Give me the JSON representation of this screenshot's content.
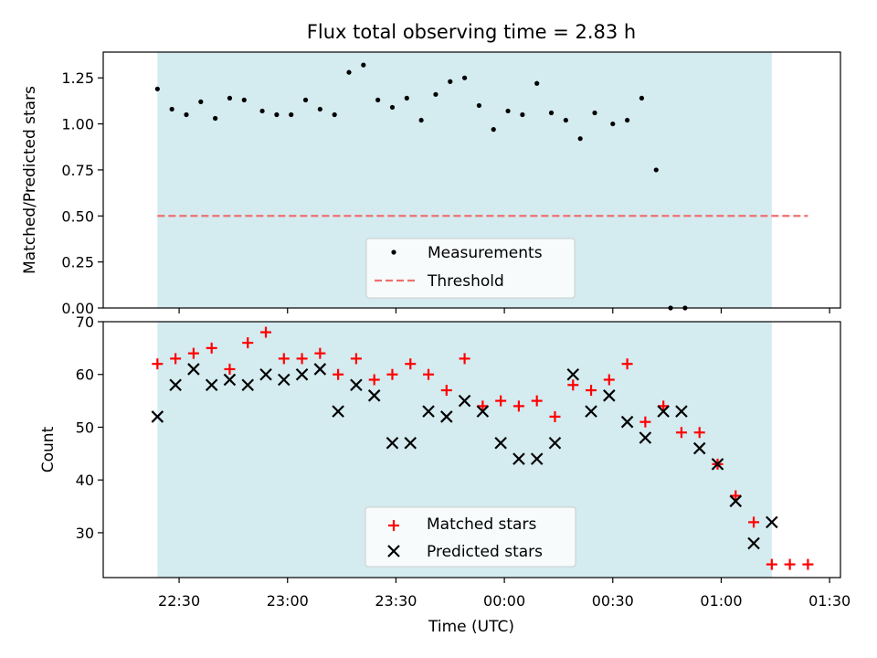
{
  "chart_data": [
    {
      "type": "scatter",
      "title": "Flux total observing time = 2.83 h",
      "xlabel": "",
      "ylabel": "Matched/Predicted stars",
      "ylim": [
        0,
        1.39
      ],
      "yticks": [
        0.0,
        0.25,
        0.5,
        0.75,
        1.0,
        1.25
      ],
      "ytick_labels": [
        "0.00",
        "0.25",
        "0.50",
        "0.75",
        "1.00",
        "1.25"
      ],
      "xlim": [
        "22:09",
        "01:33"
      ],
      "shaded_region": {
        "from": "22:24",
        "to": "01:14",
        "color": "#d4ebf0"
      },
      "threshold": {
        "name": "Threshold",
        "value": 0.5,
        "from": "22:24",
        "to": "01:24",
        "color": "#f07070"
      },
      "series": [
        {
          "name": "Measurements",
          "color": "#000000",
          "points": [
            [
              "22:24",
              1.19
            ],
            [
              "22:28",
              1.08
            ],
            [
              "22:32",
              1.05
            ],
            [
              "22:36",
              1.12
            ],
            [
              "22:40",
              1.03
            ],
            [
              "22:44",
              1.14
            ],
            [
              "22:48",
              1.13
            ],
            [
              "22:53",
              1.07
            ],
            [
              "22:57",
              1.05
            ],
            [
              "23:01",
              1.05
            ],
            [
              "23:05",
              1.13
            ],
            [
              "23:09",
              1.08
            ],
            [
              "23:13",
              1.05
            ],
            [
              "23:17",
              1.28
            ],
            [
              "23:21",
              1.32
            ],
            [
              "23:25",
              1.13
            ],
            [
              "23:29",
              1.09
            ],
            [
              "23:33",
              1.14
            ],
            [
              "23:37",
              1.02
            ],
            [
              "23:41",
              1.16
            ],
            [
              "23:45",
              1.23
            ],
            [
              "23:49",
              1.25
            ],
            [
              "23:53",
              1.1
            ],
            [
              "23:57",
              0.97
            ],
            [
              "00:01",
              1.07
            ],
            [
              "00:05",
              1.05
            ],
            [
              "00:09",
              1.22
            ],
            [
              "00:13",
              1.06
            ],
            [
              "00:17",
              1.02
            ],
            [
              "00:21",
              0.92
            ],
            [
              "00:25",
              1.06
            ],
            [
              "00:30",
              1.0
            ],
            [
              "00:34",
              1.02
            ],
            [
              "00:38",
              1.14
            ],
            [
              "00:42",
              0.75
            ],
            [
              "00:46",
              0.0
            ],
            [
              "00:50",
              0.0
            ]
          ]
        }
      ],
      "legend": {
        "placement": "lower-center",
        "entries": [
          "Measurements",
          "Threshold"
        ]
      }
    },
    {
      "type": "scatter",
      "title": "",
      "xlabel": "Time (UTC)",
      "ylabel": "Count",
      "ylim": [
        21.5,
        70
      ],
      "yticks": [
        30,
        40,
        50,
        60,
        70
      ],
      "ytick_labels": [
        "30",
        "40",
        "50",
        "60",
        "70"
      ],
      "xlim": [
        "22:09",
        "01:33"
      ],
      "xticks": [
        "22:30",
        "23:00",
        "23:30",
        "00:00",
        "00:30",
        "01:00",
        "01:30"
      ],
      "shaded_region": {
        "from": "22:24",
        "to": "01:14",
        "color": "#d4ebf0"
      },
      "series": [
        {
          "name": "Matched stars",
          "marker": "plus",
          "color": "#ff0000",
          "points": [
            [
              "22:24",
              62
            ],
            [
              "22:29",
              63
            ],
            [
              "22:34",
              64
            ],
            [
              "22:39",
              65
            ],
            [
              "22:44",
              61
            ],
            [
              "22:49",
              66
            ],
            [
              "22:54",
              68
            ],
            [
              "22:59",
              63
            ],
            [
              "23:04",
              63
            ],
            [
              "23:09",
              64
            ],
            [
              "23:14",
              60
            ],
            [
              "23:19",
              63
            ],
            [
              "23:24",
              59
            ],
            [
              "23:29",
              60
            ],
            [
              "23:34",
              62
            ],
            [
              "23:39",
              60
            ],
            [
              "23:44",
              57
            ],
            [
              "23:49",
              63
            ],
            [
              "23:54",
              54
            ],
            [
              "23:59",
              55
            ],
            [
              "00:04",
              54
            ],
            [
              "00:09",
              55
            ],
            [
              "00:14",
              52
            ],
            [
              "00:19",
              58
            ],
            [
              "00:24",
              57
            ],
            [
              "00:29",
              59
            ],
            [
              "00:34",
              62
            ],
            [
              "00:39",
              51
            ],
            [
              "00:44",
              54
            ],
            [
              "00:49",
              49
            ],
            [
              "00:54",
              49
            ],
            [
              "00:59",
              43
            ],
            [
              "01:04",
              37
            ],
            [
              "01:09",
              32
            ],
            [
              "01:14",
              24
            ],
            [
              "01:19",
              24
            ],
            [
              "01:24",
              24
            ]
          ]
        },
        {
          "name": "Predicted stars",
          "marker": "x",
          "color": "#000000",
          "points": [
            [
              "22:24",
              52
            ],
            [
              "22:29",
              58
            ],
            [
              "22:34",
              61
            ],
            [
              "22:39",
              58
            ],
            [
              "22:44",
              59
            ],
            [
              "22:49",
              58
            ],
            [
              "22:54",
              60
            ],
            [
              "22:59",
              59
            ],
            [
              "23:04",
              60
            ],
            [
              "23:09",
              61
            ],
            [
              "23:14",
              53
            ],
            [
              "23:19",
              58
            ],
            [
              "23:24",
              56
            ],
            [
              "23:29",
              47
            ],
            [
              "23:34",
              47
            ],
            [
              "23:39",
              53
            ],
            [
              "23:44",
              52
            ],
            [
              "23:49",
              55
            ],
            [
              "23:54",
              53
            ],
            [
              "23:59",
              47
            ],
            [
              "00:04",
              44
            ],
            [
              "00:09",
              44
            ],
            [
              "00:14",
              47
            ],
            [
              "00:19",
              60
            ],
            [
              "00:24",
              53
            ],
            [
              "00:29",
              56
            ],
            [
              "00:34",
              51
            ],
            [
              "00:39",
              48
            ],
            [
              "00:44",
              53
            ],
            [
              "00:49",
              53
            ],
            [
              "00:54",
              46
            ],
            [
              "00:59",
              43
            ],
            [
              "01:04",
              36
            ],
            [
              "01:09",
              28
            ],
            [
              "01:14",
              32
            ]
          ]
        }
      ],
      "legend": {
        "placement": "lower-center",
        "entries": [
          "Matched stars",
          "Predicted stars"
        ]
      }
    }
  ]
}
